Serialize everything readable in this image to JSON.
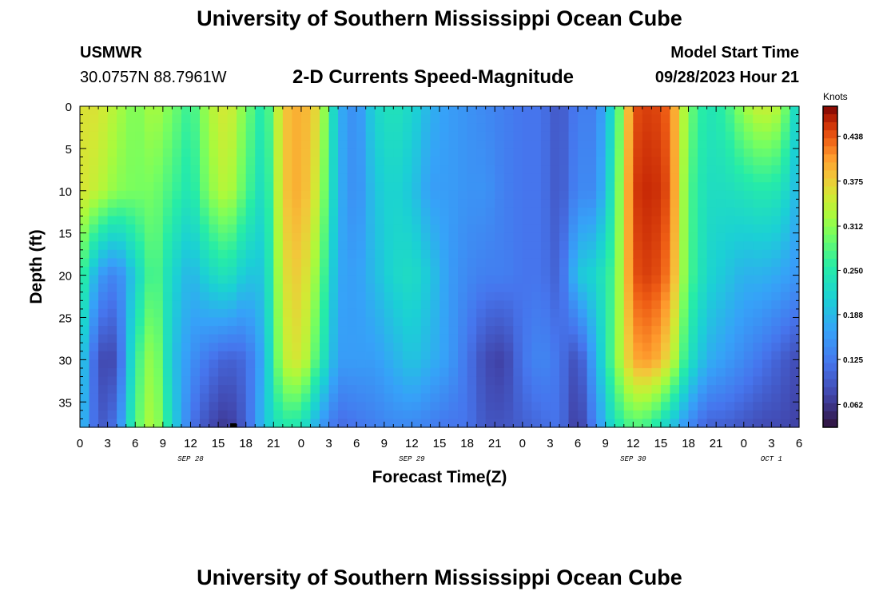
{
  "header": {
    "title": "University of Southern Mississippi Ocean Cube",
    "station_name": "USMWR",
    "coords": "30.0757N  88.7961W",
    "subtitle": "2-D Currents Speed-Magnitude",
    "model_start_label": "Model Start Time",
    "model_start_value": "09/28/2023 Hour 21"
  },
  "footer": {
    "title": "University of Southern Mississippi Ocean Cube"
  },
  "chart_data": {
    "type": "heatmap",
    "title": "2-D Currents Speed-Magnitude",
    "xlabel": "Forecast Time(Z)",
    "ylabel": "Depth (ft)",
    "x_range_hours": [
      0,
      78
    ],
    "y_range_ft": [
      0,
      38
    ],
    "x_tick_labels": [
      "0",
      "3",
      "6",
      "9",
      "12",
      "15",
      "18",
      "21",
      "0",
      "3",
      "6",
      "9",
      "12",
      "15",
      "18",
      "21",
      "0",
      "3",
      "6",
      "9",
      "12",
      "15",
      "18",
      "21",
      "0",
      "3",
      "6"
    ],
    "y_tick_labels": [
      "0",
      "5",
      "10",
      "15",
      "20",
      "25",
      "30",
      "35"
    ],
    "date_labels": [
      {
        "label": "SEP 28",
        "hour": 12
      },
      {
        "label": "SEP 29",
        "hour": 36
      },
      {
        "label": "SEP 30",
        "hour": 60
      },
      {
        "label": "OCT 1",
        "hour": 75
      }
    ],
    "colorbar": {
      "unit": "Knots",
      "range": [
        0.03,
        0.48
      ],
      "tick_labels": [
        "0.438",
        "0.375",
        "0.312",
        "0.250",
        "0.188",
        "0.125",
        "0.062"
      ],
      "tick_values": [
        0.438,
        0.375,
        0.312,
        0.25,
        0.188,
        0.125,
        0.062
      ],
      "colormap": "turbo"
    },
    "speed_profiles_knots": {
      "depths_ft": [
        0,
        10,
        20,
        30,
        38
      ],
      "hours": [
        0,
        2,
        4,
        6,
        8,
        10,
        12,
        14,
        16,
        18,
        20,
        22,
        24,
        26,
        28,
        30,
        32,
        34,
        36,
        38,
        40,
        42,
        44,
        46,
        48,
        50,
        52,
        54,
        56,
        58,
        60,
        62,
        64,
        66,
        68,
        70,
        72,
        74,
        76,
        78
      ],
      "d0": [
        0.36,
        0.36,
        0.33,
        0.3,
        0.33,
        0.3,
        0.26,
        0.33,
        0.36,
        0.3,
        0.24,
        0.38,
        0.4,
        0.36,
        0.18,
        0.14,
        0.22,
        0.24,
        0.22,
        0.18,
        0.16,
        0.15,
        0.14,
        0.13,
        0.12,
        0.12,
        0.09,
        0.13,
        0.13,
        0.24,
        0.44,
        0.45,
        0.43,
        0.3,
        0.24,
        0.26,
        0.32,
        0.35,
        0.33,
        0.2
      ],
      "d10": [
        0.36,
        0.34,
        0.31,
        0.3,
        0.3,
        0.27,
        0.24,
        0.31,
        0.34,
        0.28,
        0.22,
        0.38,
        0.4,
        0.34,
        0.18,
        0.14,
        0.2,
        0.22,
        0.2,
        0.16,
        0.16,
        0.15,
        0.15,
        0.13,
        0.12,
        0.12,
        0.09,
        0.14,
        0.14,
        0.26,
        0.45,
        0.46,
        0.44,
        0.28,
        0.23,
        0.23,
        0.24,
        0.25,
        0.24,
        0.18
      ],
      "d20": [
        0.28,
        0.16,
        0.13,
        0.21,
        0.29,
        0.22,
        0.18,
        0.22,
        0.24,
        0.2,
        0.2,
        0.36,
        0.38,
        0.3,
        0.17,
        0.16,
        0.19,
        0.22,
        0.23,
        0.2,
        0.16,
        0.14,
        0.13,
        0.13,
        0.12,
        0.12,
        0.1,
        0.2,
        0.22,
        0.28,
        0.44,
        0.45,
        0.42,
        0.28,
        0.22,
        0.2,
        0.18,
        0.18,
        0.17,
        0.15
      ],
      "d30": [
        0.22,
        0.08,
        0.08,
        0.26,
        0.33,
        0.2,
        0.15,
        0.12,
        0.1,
        0.11,
        0.18,
        0.34,
        0.36,
        0.26,
        0.16,
        0.16,
        0.16,
        0.18,
        0.2,
        0.18,
        0.16,
        0.12,
        0.08,
        0.07,
        0.12,
        0.14,
        0.12,
        0.08,
        0.18,
        0.3,
        0.4,
        0.41,
        0.36,
        0.24,
        0.18,
        0.16,
        0.14,
        0.12,
        0.1,
        0.08
      ],
      "d38": [
        0.2,
        0.09,
        0.12,
        0.28,
        0.34,
        0.22,
        0.12,
        0.08,
        0.06,
        0.1,
        0.2,
        0.25,
        0.24,
        0.16,
        0.11,
        0.12,
        0.13,
        0.14,
        0.14,
        0.13,
        0.12,
        0.12,
        0.09,
        0.09,
        0.1,
        0.11,
        0.12,
        0.06,
        0.14,
        0.24,
        0.28,
        0.26,
        0.2,
        0.14,
        0.1,
        0.1,
        0.09,
        0.08,
        0.08,
        0.07
      ]
    }
  }
}
